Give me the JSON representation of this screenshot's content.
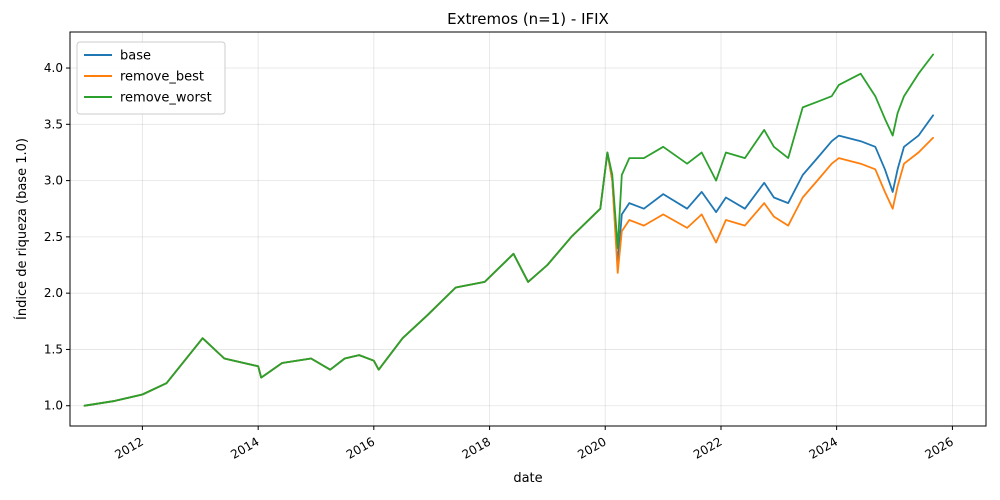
{
  "chart_data": {
    "type": "line",
    "title": "Extremos (n=1) - IFIX",
    "xlabel": "date",
    "ylabel": "Índice de riqueza (base 1.0)",
    "x_ticks": [
      "2012",
      "2014",
      "2016",
      "2018",
      "2020",
      "2022",
      "2024",
      "2026"
    ],
    "y_ticks": [
      "1.0",
      "1.5",
      "2.0",
      "2.5",
      "3.0",
      "3.5",
      "4.0"
    ],
    "xlim": [
      "2010-10-01",
      "2026-08-01"
    ],
    "ylim": [
      0.82,
      4.32
    ],
    "grid": true,
    "legend_position": "top-left",
    "x": [
      "2011-01-01",
      "2011-07-01",
      "2012-01-01",
      "2012-06-01",
      "2012-12-01",
      "2013-01-15",
      "2013-06-01",
      "2014-01-01",
      "2014-01-20",
      "2014-06-01",
      "2014-12-01",
      "2015-04-01",
      "2015-07-01",
      "2015-10-01",
      "2016-01-01",
      "2016-02-01",
      "2016-07-01",
      "2016-12-01",
      "2017-06-01",
      "2017-12-01",
      "2018-06-01",
      "2018-09-01",
      "2019-01-01",
      "2019-06-01",
      "2019-12-01",
      "2020-01-15",
      "2020-02-15",
      "2020-03-20",
      "2020-04-15",
      "2020-06-01",
      "2020-09-01",
      "2021-01-01",
      "2021-06-01",
      "2021-09-01",
      "2021-12-01",
      "2022-02-01",
      "2022-06-01",
      "2022-10-01",
      "2022-12-01",
      "2023-03-01",
      "2023-06-01",
      "2023-09-01",
      "2023-12-01",
      "2024-01-15",
      "2024-06-01",
      "2024-09-01",
      "2024-11-01",
      "2024-12-20",
      "2025-01-20",
      "2025-03-01",
      "2025-06-01",
      "2025-09-01"
    ],
    "series": [
      {
        "name": "base",
        "color": "#1f77b4",
        "values": [
          1.0,
          1.04,
          1.1,
          1.2,
          1.52,
          1.6,
          1.42,
          1.35,
          1.25,
          1.38,
          1.42,
          1.32,
          1.42,
          1.45,
          1.4,
          1.32,
          1.6,
          1.8,
          2.05,
          2.1,
          2.35,
          2.1,
          2.25,
          2.5,
          2.75,
          3.25,
          3.0,
          2.25,
          2.7,
          2.8,
          2.75,
          2.88,
          2.75,
          2.9,
          2.72,
          2.85,
          2.75,
          2.98,
          2.85,
          2.8,
          3.05,
          3.2,
          3.35,
          3.4,
          3.35,
          3.3,
          3.1,
          2.9,
          3.1,
          3.3,
          3.4,
          3.58
        ]
      },
      {
        "name": "remove_best",
        "color": "#ff7f0e",
        "values": [
          1.0,
          1.04,
          1.1,
          1.2,
          1.52,
          1.6,
          1.42,
          1.35,
          1.25,
          1.38,
          1.42,
          1.32,
          1.42,
          1.45,
          1.4,
          1.32,
          1.6,
          1.8,
          2.05,
          2.1,
          2.35,
          2.1,
          2.25,
          2.5,
          2.75,
          3.25,
          3.0,
          2.18,
          2.55,
          2.65,
          2.6,
          2.7,
          2.58,
          2.7,
          2.45,
          2.65,
          2.6,
          2.8,
          2.68,
          2.6,
          2.85,
          3.0,
          3.15,
          3.2,
          3.15,
          3.1,
          2.9,
          2.75,
          2.95,
          3.15,
          3.25,
          3.38
        ]
      },
      {
        "name": "remove_worst",
        "color": "#2ca02c",
        "values": [
          1.0,
          1.04,
          1.1,
          1.2,
          1.52,
          1.6,
          1.42,
          1.35,
          1.25,
          1.38,
          1.42,
          1.32,
          1.42,
          1.45,
          1.4,
          1.32,
          1.6,
          1.8,
          2.05,
          2.1,
          2.35,
          2.1,
          2.25,
          2.5,
          2.75,
          3.25,
          3.05,
          2.4,
          3.05,
          3.2,
          3.2,
          3.3,
          3.15,
          3.25,
          3.0,
          3.25,
          3.2,
          3.45,
          3.3,
          3.2,
          3.65,
          3.7,
          3.75,
          3.85,
          3.95,
          3.75,
          3.55,
          3.4,
          3.6,
          3.75,
          3.95,
          4.12
        ]
      }
    ]
  }
}
